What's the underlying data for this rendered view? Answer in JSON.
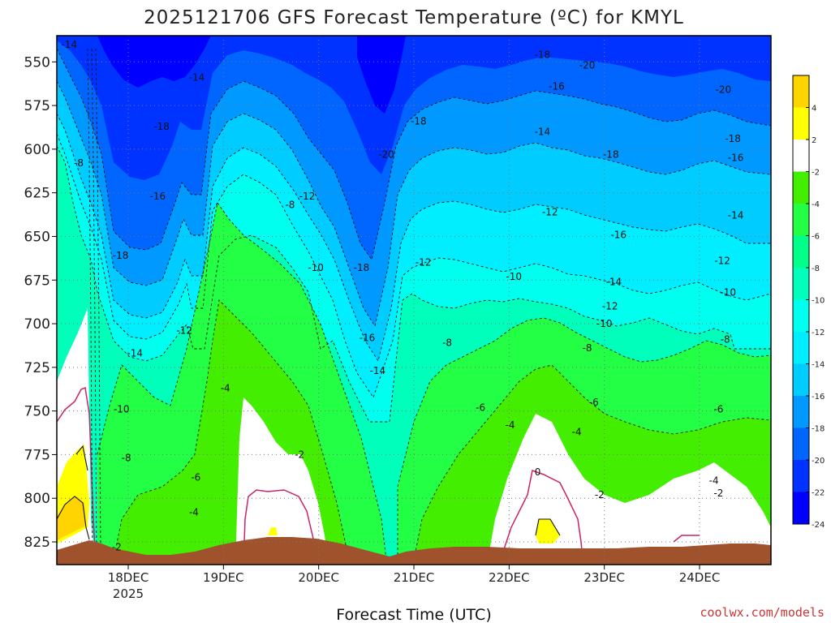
{
  "chart_data": {
    "type": "heatmap",
    "title": "2025121706 GFS Forecast Temperature (ºC) for KMYL",
    "xlabel": "Forecast Time (UTC)",
    "ylabel": "",
    "credit": "coolwx.com/models",
    "x_ticks": [
      "18DEC",
      "19DEC",
      "20DEC",
      "21DEC",
      "22DEC",
      "23DEC",
      "24DEC"
    ],
    "x_year_label": "2025",
    "y_ticks": [
      550,
      575,
      600,
      625,
      650,
      675,
      700,
      725,
      750,
      775,
      800,
      825
    ],
    "ylim": [
      838,
      535
    ],
    "xlim_days": [
      17.25,
      24.75
    ],
    "grid": true,
    "colorbar": {
      "levels": [
        4,
        2,
        -2,
        -4,
        -6,
        -8,
        -10,
        -12,
        -14,
        -16,
        -18,
        -20,
        -22,
        -24
      ],
      "colors": [
        "#ffd400",
        "#ffff00",
        "#ffffff",
        "#44ee00",
        "#22ff44",
        "#00ff88",
        "#00ffbb",
        "#00ffee",
        "#00eeff",
        "#00ccff",
        "#0099ff",
        "#0066ff",
        "#0033ff",
        "#0000ff"
      ]
    },
    "contour_labels": [
      {
        "v": "-14",
        "d": 17.38,
        "p": 540
      },
      {
        "v": "-8",
        "d": 17.48,
        "p": 608
      },
      {
        "v": "-14",
        "d": 18.72,
        "p": 559
      },
      {
        "v": "-18",
        "d": 18.35,
        "p": 587
      },
      {
        "v": "-16",
        "d": 18.31,
        "p": 627
      },
      {
        "v": "-18",
        "d": 17.92,
        "p": 661
      },
      {
        "v": "-12",
        "d": 18.59,
        "p": 704
      },
      {
        "v": "-14",
        "d": 18.07,
        "p": 717
      },
      {
        "v": "-10",
        "d": 17.93,
        "p": 749
      },
      {
        "v": "-8",
        "d": 17.98,
        "p": 777
      },
      {
        "v": "-6",
        "d": 18.71,
        "p": 788
      },
      {
        "v": "-4",
        "d": 18.69,
        "p": 808
      },
      {
        "v": "-4",
        "d": 19.02,
        "p": 737
      },
      {
        "v": "-8",
        "d": 19.7,
        "p": 632
      },
      {
        "v": "-12",
        "d": 19.88,
        "p": 627
      },
      {
        "v": "-10",
        "d": 19.97,
        "p": 668
      },
      {
        "v": "-2",
        "d": 19.8,
        "p": 775
      },
      {
        "v": "-2",
        "d": 17.88,
        "p": 828
      },
      {
        "v": "-18",
        "d": 20.45,
        "p": 668
      },
      {
        "v": "-16",
        "d": 20.51,
        "p": 708
      },
      {
        "v": "-14",
        "d": 20.62,
        "p": 727
      },
      {
        "v": "-20",
        "d": 20.71,
        "p": 603
      },
      {
        "v": "-18",
        "d": 21.05,
        "p": 584
      },
      {
        "v": "-12",
        "d": 21.1,
        "p": 665
      },
      {
        "v": "-8",
        "d": 21.35,
        "p": 711
      },
      {
        "v": "-6",
        "d": 21.7,
        "p": 748
      },
      {
        "v": "-4",
        "d": 22.01,
        "p": 758
      },
      {
        "v": "-10",
        "d": 22.05,
        "p": 673
      },
      {
        "v": "-12",
        "d": 22.43,
        "p": 636
      },
      {
        "v": "-14",
        "d": 22.35,
        "p": 590
      },
      {
        "v": "-16",
        "d": 22.5,
        "p": 564
      },
      {
        "v": "-18",
        "d": 22.35,
        "p": 546
      },
      {
        "v": "-20",
        "d": 22.82,
        "p": 552
      },
      {
        "v": "-18",
        "d": 23.07,
        "p": 603
      },
      {
        "v": "-16",
        "d": 23.15,
        "p": 649
      },
      {
        "v": "-14",
        "d": 23.1,
        "p": 676
      },
      {
        "v": "-12",
        "d": 23.06,
        "p": 690
      },
      {
        "v": "-10",
        "d": 23.0,
        "p": 700
      },
      {
        "v": "-8",
        "d": 22.82,
        "p": 714
      },
      {
        "v": "-6",
        "d": 22.89,
        "p": 745
      },
      {
        "v": "-4",
        "d": 22.71,
        "p": 762
      },
      {
        "v": "0",
        "d": 22.3,
        "p": 785
      },
      {
        "v": "-2",
        "d": 22.95,
        "p": 798
      },
      {
        "v": "-20",
        "d": 24.25,
        "p": 566
      },
      {
        "v": "-18",
        "d": 24.35,
        "p": 594
      },
      {
        "v": "-16",
        "d": 24.38,
        "p": 605
      },
      {
        "v": "-14",
        "d": 24.38,
        "p": 638
      },
      {
        "v": "-12",
        "d": 24.24,
        "p": 664
      },
      {
        "v": "-10",
        "d": 24.3,
        "p": 682
      },
      {
        "v": "-8",
        "d": 24.27,
        "p": 709
      },
      {
        "v": "-6",
        "d": 24.2,
        "p": 749
      },
      {
        "v": "-4",
        "d": 24.15,
        "p": 790
      },
      {
        "v": "-2",
        "d": 24.2,
        "p": 797
      }
    ]
  }
}
